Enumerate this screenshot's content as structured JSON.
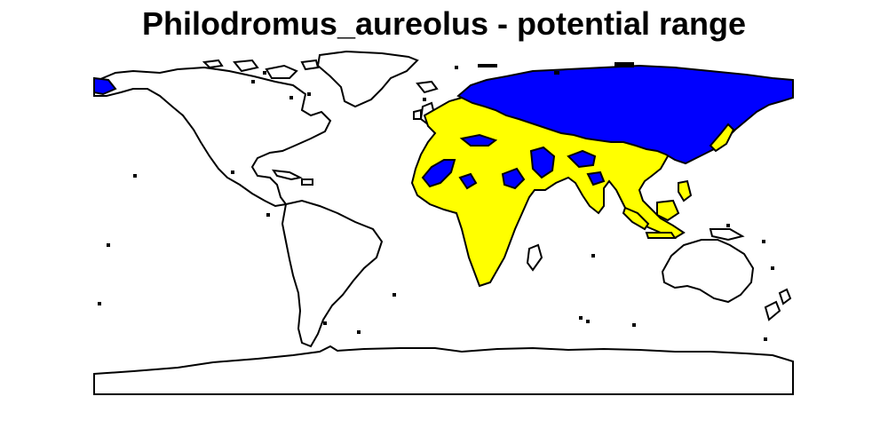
{
  "title": "Philodromus_aureolus - potential range",
  "legend_colors": {
    "native": "#0000ff",
    "potential": "#ffff00",
    "land": "#ffffff",
    "outline": "#000000"
  }
}
